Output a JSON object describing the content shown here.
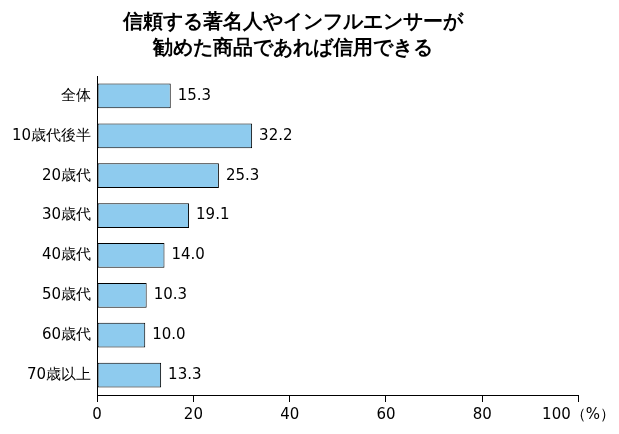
{
  "chart_data": {
    "type": "bar",
    "orientation": "horizontal",
    "title": "信頼する著名人やインフルエンサーが\n勧めた商品であれば信用できる",
    "categories": [
      "全体",
      "10歳代後半",
      "20歳代",
      "30歳代",
      "40歳代",
      "50歳代",
      "60歳代",
      "70歳以上"
    ],
    "values": [
      15.3,
      32.2,
      25.3,
      19.1,
      14.0,
      10.3,
      10.0,
      13.3
    ],
    "value_labels": [
      "15.3",
      "32.2",
      "25.3",
      "19.1",
      "14.0",
      "10.3",
      "10.0",
      "13.3"
    ],
    "color": "#8ecbee",
    "xlim": [
      0,
      100
    ],
    "xticks": [
      0,
      20,
      40,
      60,
      80,
      {
        "value": 100,
        "label": "100（%）"
      }
    ],
    "grid": false,
    "data_labels": true
  }
}
